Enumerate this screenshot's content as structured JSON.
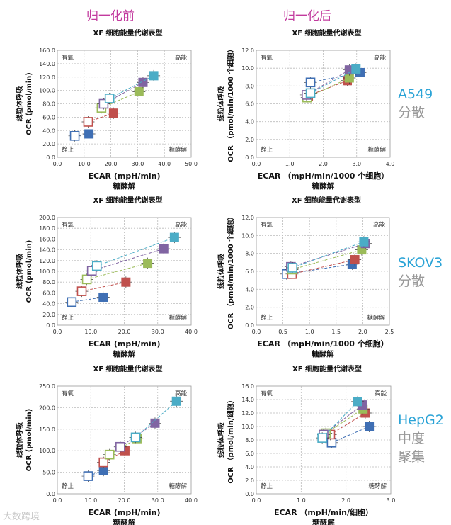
{
  "headers": {
    "before": "归一化前",
    "after": "归一化后"
  },
  "side_labels": [
    {
      "cell": "A549",
      "desc": [
        "分散"
      ]
    },
    {
      "cell": "SKOV3",
      "desc": [
        "分散"
      ]
    },
    {
      "cell": "HepG2",
      "desc": [
        "中度",
        "聚集"
      ]
    }
  ],
  "watermark": "大数跨境",
  "series_colors": [
    "#3f6fb4",
    "#c0504d",
    "#9bbb59",
    "#8064a2",
    "#4bacc6"
  ],
  "chart_data": [
    {
      "type": "scatter",
      "title": "XF 细胞能量代谢表型",
      "ylabel": [
        "线粒体呼吸",
        "OCR (pmol/min)"
      ],
      "xlabel": [
        "ECAR (mpH/min)",
        "糖酵解"
      ],
      "xlim": [
        0,
        50
      ],
      "ylim": [
        0,
        160
      ],
      "xticks": [
        "0.0",
        "10.0",
        "20.0",
        "30.0",
        "40.0",
        "50.0"
      ],
      "yticks": [
        "0.0",
        "20.0",
        "40.0",
        "60.0",
        "80.0",
        "100.0",
        "120.0",
        "140.0",
        "160.0"
      ],
      "quadrants": {
        "tl": "有氧",
        "tr": "高能",
        "bl": "静止",
        "br": "糖酵解"
      },
      "grid": true,
      "series": [
        {
          "open": [
            6.5,
            32
          ],
          "filled": [
            11.8,
            35
          ]
        },
        {
          "open": [
            11.5,
            53
          ],
          "filled": [
            21,
            66
          ]
        },
        {
          "open": [
            16.5,
            74
          ],
          "filled": [
            30.5,
            98
          ]
        },
        {
          "open": [
            17.3,
            80
          ],
          "filled": [
            32,
            112
          ]
        },
        {
          "open": [
            19.5,
            88
          ],
          "filled": [
            36,
            122
          ]
        }
      ]
    },
    {
      "type": "scatter",
      "title": "XF 细胞能量代谢表型",
      "ylabel": [
        "线粒体呼吸",
        "OCR （pmol/min/1000 个细胞）"
      ],
      "xlabel": [
        "ECAR （mpH/min/1000 个细胞）",
        "糖酵解"
      ],
      "xlim": [
        0,
        4
      ],
      "ylim": [
        0,
        12
      ],
      "xticks": [
        "0.0",
        "1.0",
        "2.0",
        "3.0",
        "4.0"
      ],
      "yticks": [
        "0.0",
        "2.0",
        "4.0",
        "6.0",
        "8.0",
        "10.0",
        "12.0"
      ],
      "quadrants": {
        "tl": "有氧",
        "tr": "高能",
        "bl": "静止",
        "br": "糖酵解"
      },
      "grid": true,
      "series": [
        {
          "open": [
            1.62,
            8.4
          ],
          "filled": [
            3.1,
            9.5
          ]
        },
        {
          "open": [
            1.55,
            6.9
          ],
          "filled": [
            2.72,
            8.6
          ]
        },
        {
          "open": [
            1.52,
            6.7
          ],
          "filled": [
            2.78,
            8.9
          ]
        },
        {
          "open": [
            1.5,
            7.0
          ],
          "filled": [
            2.78,
            9.8
          ]
        },
        {
          "open": [
            1.62,
            7.2
          ],
          "filled": [
            2.98,
            9.9
          ]
        }
      ]
    },
    {
      "type": "scatter",
      "title": "XF 细胞能量代谢表型",
      "ylabel": [
        "线粒体呼吸",
        "OCR (pmol/min)"
      ],
      "xlabel": [
        "ECAR (mpH/min)",
        "糖酵解"
      ],
      "xlim": [
        0,
        40
      ],
      "ylim": [
        0,
        200
      ],
      "xticks": [
        "0.0",
        "10.0",
        "20.0",
        "30.0",
        "40.0"
      ],
      "yticks": [
        "0.0",
        "20.0",
        "40.0",
        "60.0",
        "80.0",
        "100.0",
        "120.0",
        "140.0",
        "160.0",
        "180.0",
        "200.0"
      ],
      "quadrants": {
        "tl": "有氧",
        "tr": "高能",
        "bl": "静止",
        "br": "糖酵解"
      },
      "grid": true,
      "series": [
        {
          "open": [
            4.3,
            43
          ],
          "filled": [
            13.7,
            52
          ]
        },
        {
          "open": [
            7.3,
            63
          ],
          "filled": [
            20.5,
            80
          ]
        },
        {
          "open": [
            8.8,
            85
          ],
          "filled": [
            27,
            115
          ]
        },
        {
          "open": [
            10.3,
            101
          ],
          "filled": [
            31.8,
            142
          ]
        },
        {
          "open": [
            11.8,
            110
          ],
          "filled": [
            35,
            163
          ]
        }
      ]
    },
    {
      "type": "scatter",
      "title": "XF 细胞能量代谢表型",
      "ylabel": [
        "线粒体呼吸",
        "OCR （pmol/min/1000 个细胞）"
      ],
      "xlabel": [
        "ECAR （mpH/min/1000 个细胞）",
        "糖酵解"
      ],
      "xlim": [
        0,
        2.5
      ],
      "ylim": [
        0,
        12
      ],
      "xticks": [
        "0.0",
        "0.5",
        "1.0",
        "1.5",
        "2.0",
        "2.5"
      ],
      "yticks": [
        "0.0",
        "2.0",
        "4.0",
        "6.0",
        "8.0",
        "10.0",
        "12.0"
      ],
      "quadrants": {
        "tl": "有氧",
        "tr": "高能",
        "bl": "静止",
        "br": "糖酵解"
      },
      "grid": true,
      "series": [
        {
          "open": [
            0.57,
            5.7
          ],
          "filled": [
            1.8,
            6.8
          ]
        },
        {
          "open": [
            0.67,
            5.7
          ],
          "filled": [
            1.85,
            7.3
          ]
        },
        {
          "open": [
            0.67,
            6.2
          ],
          "filled": [
            1.98,
            8.4
          ]
        },
        {
          "open": [
            0.65,
            6.5
          ],
          "filled": [
            2.05,
            9.1
          ]
        },
        {
          "open": [
            0.68,
            6.4
          ],
          "filled": [
            2.02,
            9.3
          ]
        }
      ]
    },
    {
      "type": "scatter",
      "title": "XF 细胞能量代谢表型",
      "ylabel": [
        "线粒体呼吸",
        "OCR (pmol/min)"
      ],
      "xlabel": [
        "ECAR (mpH/min)",
        "糖酵解"
      ],
      "xlim": [
        0,
        40
      ],
      "ylim": [
        0,
        250
      ],
      "xticks": [
        "0.0",
        "10.0",
        "20.0",
        "30.0",
        "40.0"
      ],
      "yticks": [
        "0.0",
        "50.0",
        "100.0",
        "150.0",
        "200.0",
        "250.0"
      ],
      "quadrants": {
        "tl": "有氧",
        "tr": "高能",
        "bl": "静止",
        "br": "糖酵解"
      },
      "grid": true,
      "series": [
        {
          "open": [
            9.2,
            41
          ],
          "filled": [
            13.8,
            54
          ]
        },
        {
          "open": [
            13.8,
            73
          ],
          "filled": [
            20.2,
            100
          ]
        },
        {
          "open": [
            15.6,
            91
          ],
          "filled": [
            23.8,
            128
          ]
        },
        {
          "open": [
            18.8,
            109
          ],
          "filled": [
            29.2,
            164
          ]
        },
        {
          "open": [
            23.4,
            131
          ],
          "filled": [
            35.6,
            215
          ]
        }
      ]
    },
    {
      "type": "scatter",
      "title": "XF 细胞能量代谢表型",
      "ylabel": [
        "线粒体呼吸",
        "OCR （pmol/min/细胞）"
      ],
      "xlabel": [
        "ECAR （mpH/min/细胞）",
        "糖酵解"
      ],
      "xlim": [
        0,
        3
      ],
      "ylim": [
        0,
        16
      ],
      "xticks": [
        "0.0",
        "1.0",
        "2.0",
        "3.0"
      ],
      "yticks": [
        "0.0",
        "2.0",
        "4.0",
        "6.0",
        "8.0",
        "10.0",
        "12.0",
        "14.0",
        "16.0"
      ],
      "quadrants": {
        "tl": "有氧",
        "tr": "高能",
        "bl": "静止",
        "br": "糖酵解"
      },
      "grid": true,
      "series": [
        {
          "open": [
            1.68,
            7.6
          ],
          "filled": [
            2.52,
            10.0
          ]
        },
        {
          "open": [
            1.65,
            8.8
          ],
          "filled": [
            2.43,
            12.0
          ]
        },
        {
          "open": [
            1.55,
            9.0
          ],
          "filled": [
            2.38,
            12.6
          ]
        },
        {
          "open": [
            1.5,
            8.8
          ],
          "filled": [
            2.36,
            13.2
          ]
        },
        {
          "open": [
            1.47,
            8.3
          ],
          "filled": [
            2.26,
            13.7
          ]
        }
      ]
    }
  ]
}
